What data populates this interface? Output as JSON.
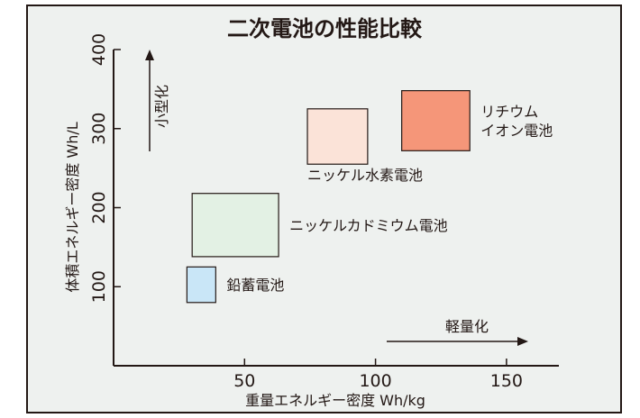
{
  "chart_data": {
    "type": "range-box",
    "title": "二次電池の性能比較",
    "xlabel": "重量エネルギー密度 Wh/kg",
    "ylabel": "体積エネルギー密度 Wh/L",
    "xlim": [
      0,
      170
    ],
    "ylim": [
      0,
      400
    ],
    "xticks": [
      50,
      100,
      150
    ],
    "yticks": [
      100,
      200,
      300,
      400
    ],
    "grid": false,
    "series": [
      {
        "name": "鉛蓄電池",
        "x_range": [
          28,
          39
        ],
        "y_range": [
          80,
          125
        ],
        "color": "#c9e6f7",
        "label_lines": [
          "鉛蓄電池"
        ]
      },
      {
        "name": "ニッケルカドミウム電池",
        "x_range": [
          30,
          63
        ],
        "y_range": [
          138,
          218
        ],
        "color": "#e3f1e4",
        "label_lines": [
          "ニッケルカドミウム電池"
        ]
      },
      {
        "name": "ニッケル水素電池",
        "x_range": [
          74,
          97
        ],
        "y_range": [
          255,
          325
        ],
        "color": "#fbe3d8",
        "label_lines": [
          "ニッケル水素電池"
        ]
      },
      {
        "name": "リチウムイオン電池",
        "x_range": [
          110,
          136
        ],
        "y_range": [
          272,
          348
        ],
        "color": "#f59679",
        "label_lines": [
          "リチウム",
          "イオン電池"
        ]
      }
    ],
    "annotations": {
      "x_arrow": "軽量化",
      "y_arrow": "小型化"
    }
  }
}
